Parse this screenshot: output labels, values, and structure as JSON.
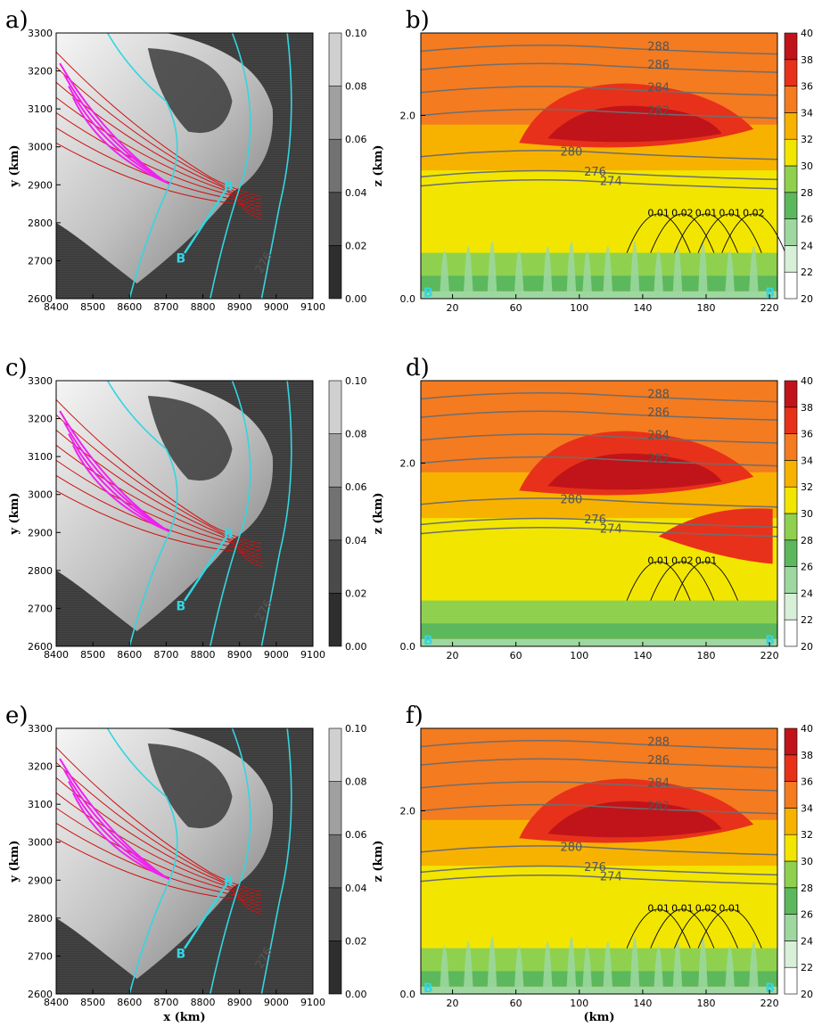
{
  "figure": {
    "panels": [
      "a)",
      "b)",
      "c)",
      "d)",
      "e)",
      "f)"
    ]
  },
  "chart_data": [
    {
      "panel": "a)",
      "type": "heatmap",
      "xlabel": "",
      "ylabel": "y (km)",
      "xlim": [
        8400,
        9100
      ],
      "ylim": [
        2600,
        3300
      ],
      "xticks": [
        "8400",
        "8500",
        "8600",
        "8700",
        "8800",
        "8900",
        "9000",
        "9100"
      ],
      "yticks": [
        "2600",
        "2700",
        "2800",
        "2900",
        "3000",
        "3100",
        "3200",
        "3300"
      ],
      "colorbar": {
        "ticks": [
          "0.00",
          "0.02",
          "0.04",
          "0.06",
          "0.08",
          "0.10"
        ],
        "colors": [
          "#2e2e2e",
          "#4a4a4a",
          "#727272",
          "#a0a0a0",
          "#d0d0d0",
          "#ffffff"
        ]
      },
      "section_labels": [
        "B",
        "B"
      ],
      "contour_labels": [
        "276"
      ]
    },
    {
      "panel": "b)",
      "type": "heatmap",
      "xlabel": "",
      "ylabel": "z (km)",
      "xlim": [
        0,
        225
      ],
      "ylim": [
        0.0,
        2.9
      ],
      "xticks": [
        "20",
        "60",
        "100",
        "140",
        "180",
        "220"
      ],
      "yticks": [
        "0.0",
        "2.0"
      ],
      "colorbar": {
        "ticks": [
          "20",
          "22",
          "24",
          "26",
          "28",
          "30",
          "32",
          "34",
          "36",
          "38",
          "40"
        ],
        "colors": [
          "#ffffff",
          "#d8f0d8",
          "#9ed8a0",
          "#5cb85c",
          "#8fd14f",
          "#f2e600",
          "#f7b200",
          "#f47b20",
          "#e8311a",
          "#c0141a",
          "#7a0a0a"
        ]
      },
      "section_labels": [
        "B",
        "B"
      ],
      "contour_labels": [
        "288",
        "286",
        "284",
        "282",
        "280",
        "276",
        "274"
      ],
      "small_labels": [
        "0.01",
        "0.02",
        "0.01",
        "0.01",
        "0.02"
      ]
    },
    {
      "panel": "c)",
      "type": "heatmap",
      "xlabel": "",
      "ylabel": "y (km)",
      "xlim": [
        8400,
        9100
      ],
      "ylim": [
        2600,
        3300
      ],
      "xticks": [
        "8400",
        "8500",
        "8600",
        "8700",
        "8800",
        "8900",
        "9000",
        "9100"
      ],
      "yticks": [
        "2600",
        "2700",
        "2800",
        "2900",
        "3000",
        "3100",
        "3200",
        "3300"
      ],
      "colorbar": {
        "ticks": [
          "0.00",
          "0.02",
          "0.04",
          "0.06",
          "0.08",
          "0.10"
        ],
        "colors": [
          "#2e2e2e",
          "#4a4a4a",
          "#727272",
          "#a0a0a0",
          "#d0d0d0",
          "#ffffff"
        ]
      },
      "section_labels": [
        "B",
        "B"
      ],
      "contour_labels": [
        "276"
      ]
    },
    {
      "panel": "d)",
      "type": "heatmap",
      "xlabel": "",
      "ylabel": "z (km)",
      "xlim": [
        0,
        225
      ],
      "ylim": [
        0.0,
        2.9
      ],
      "xticks": [
        "20",
        "60",
        "100",
        "140",
        "180",
        "220"
      ],
      "yticks": [
        "0.0",
        "2.0"
      ],
      "colorbar": {
        "ticks": [
          "20",
          "22",
          "24",
          "26",
          "28",
          "30",
          "32",
          "34",
          "36",
          "38",
          "40"
        ],
        "colors": [
          "#ffffff",
          "#d8f0d8",
          "#9ed8a0",
          "#5cb85c",
          "#8fd14f",
          "#f2e600",
          "#f7b200",
          "#f47b20",
          "#e8311a",
          "#c0141a",
          "#7a0a0a"
        ]
      },
      "section_labels": [
        "B",
        "B"
      ],
      "contour_labels": [
        "288",
        "286",
        "284",
        "282",
        "280",
        "276",
        "274"
      ],
      "small_labels": [
        "0.01",
        "0.02",
        "0.01"
      ]
    },
    {
      "panel": "e)",
      "type": "heatmap",
      "xlabel": "x (km)",
      "ylabel": "y (km)",
      "xlim": [
        8400,
        9100
      ],
      "ylim": [
        2600,
        3300
      ],
      "xticks": [
        "8400",
        "8500",
        "8600",
        "8700",
        "8800",
        "8900",
        "9000",
        "9100"
      ],
      "yticks": [
        "2600",
        "2700",
        "2800",
        "2900",
        "3000",
        "3100",
        "3200",
        "3300"
      ],
      "colorbar": {
        "ticks": [
          "0.00",
          "0.02",
          "0.04",
          "0.06",
          "0.08",
          "0.10"
        ],
        "colors": [
          "#2e2e2e",
          "#4a4a4a",
          "#727272",
          "#a0a0a0",
          "#d0d0d0",
          "#ffffff"
        ]
      },
      "section_labels": [
        "B",
        "B"
      ],
      "contour_labels": [
        "276"
      ]
    },
    {
      "panel": "f)",
      "type": "heatmap",
      "xlabel": "(km)",
      "ylabel": "z (km)",
      "xlim": [
        0,
        225
      ],
      "ylim": [
        0.0,
        2.9
      ],
      "xticks": [
        "20",
        "60",
        "100",
        "140",
        "180",
        "220"
      ],
      "yticks": [
        "0.0",
        "2.0"
      ],
      "colorbar": {
        "ticks": [
          "20",
          "22",
          "24",
          "26",
          "28",
          "30",
          "32",
          "34",
          "36",
          "38",
          "40"
        ],
        "colors": [
          "#ffffff",
          "#d8f0d8",
          "#9ed8a0",
          "#5cb85c",
          "#8fd14f",
          "#f2e600",
          "#f7b200",
          "#f47b20",
          "#e8311a",
          "#c0141a",
          "#7a0a0a"
        ]
      },
      "section_labels": [
        "B",
        "B"
      ],
      "contour_labels": [
        "288",
        "286",
        "284",
        "282",
        "280",
        "276",
        "274"
      ],
      "small_labels": [
        "0.01",
        "0.01",
        "0.02",
        "0.01"
      ]
    }
  ]
}
